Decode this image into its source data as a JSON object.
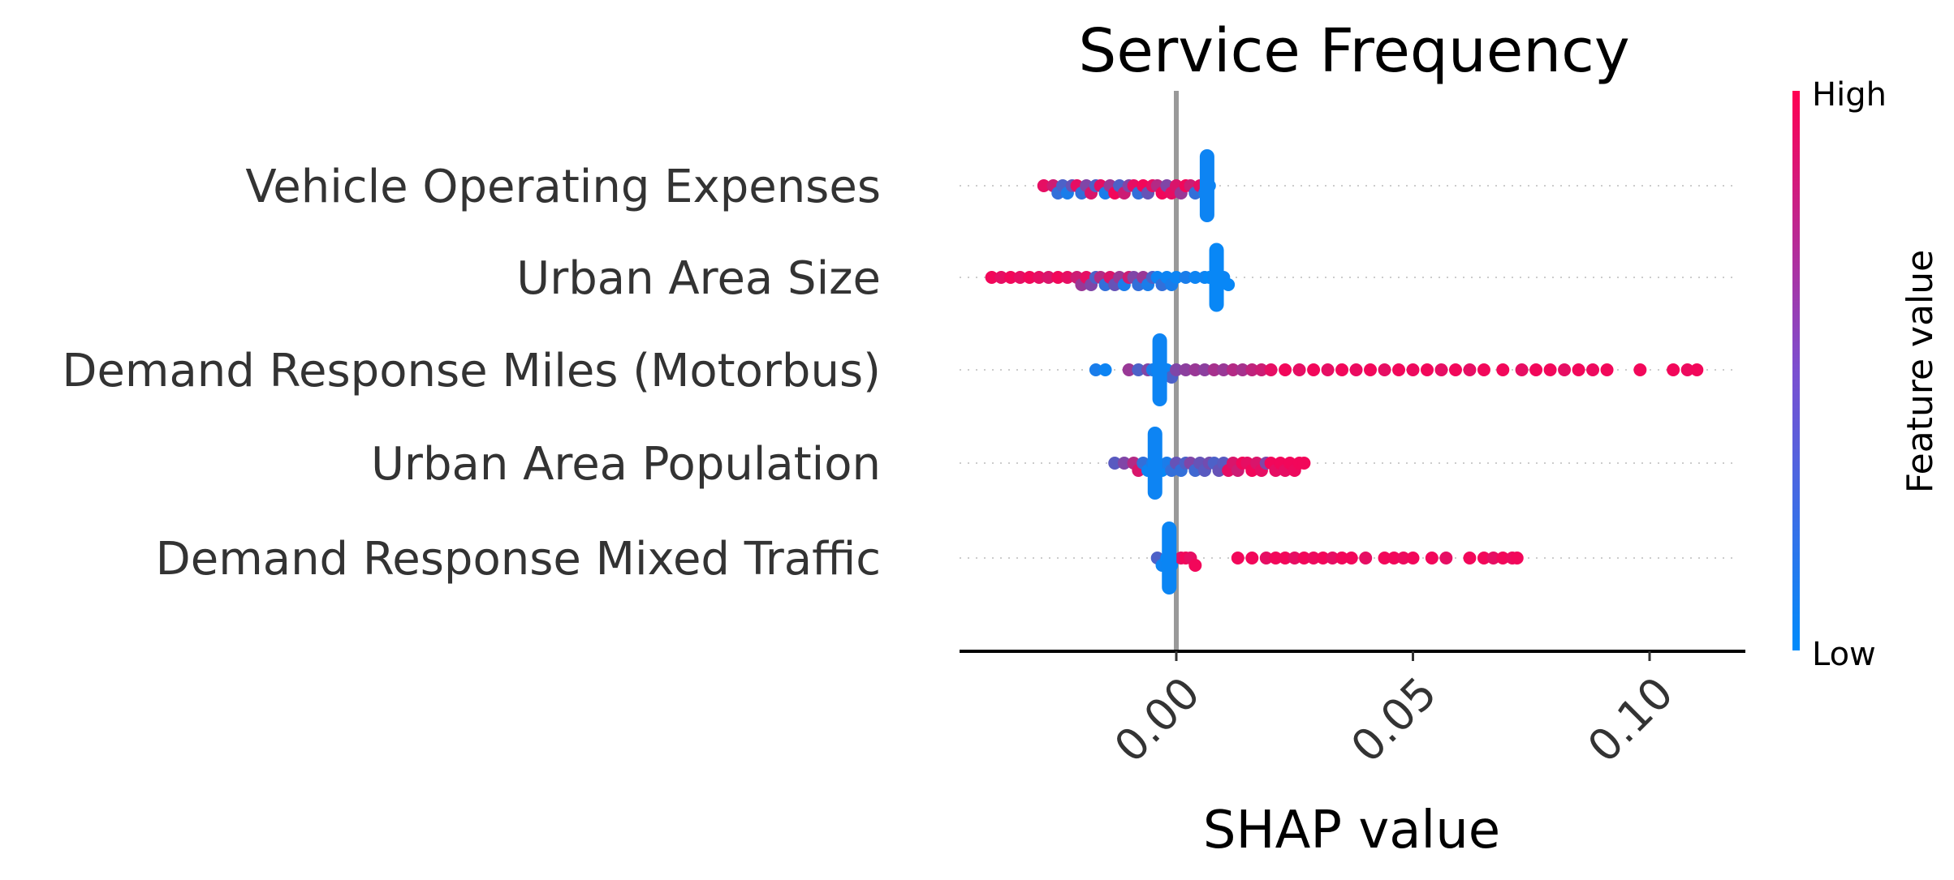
{
  "chart_data": {
    "type": "scatter",
    "subtype": "shap-beeswarm",
    "title": "Service Frequency",
    "xlabel": "SHAP value",
    "xlim": [
      -0.046,
      0.12
    ],
    "xticks": [
      {
        "value": 0.0,
        "label": "0.00"
      },
      {
        "value": 0.05,
        "label": "0.05"
      },
      {
        "value": 0.1,
        "label": "0.10"
      }
    ],
    "zero_line": true,
    "colorbar": {
      "title": "Feature value",
      "high_label": "High",
      "low_label": "Low",
      "low_color": "#008bfb",
      "high_color": "#ff0052"
    },
    "features": [
      {
        "name": "Vehicle Operating Expenses",
        "points": [
          [
            -0.028,
            0.9
          ],
          [
            -0.026,
            0.8
          ],
          [
            -0.025,
            0.2
          ],
          [
            -0.024,
            0.3
          ],
          [
            -0.023,
            0.1
          ],
          [
            -0.022,
            0.4
          ],
          [
            -0.021,
            0.9
          ],
          [
            -0.02,
            0.2
          ],
          [
            -0.019,
            0.5
          ],
          [
            -0.018,
            0.85
          ],
          [
            -0.017,
            0.3
          ],
          [
            -0.016,
            0.9
          ],
          [
            -0.015,
            0.1
          ],
          [
            -0.014,
            0.6
          ],
          [
            -0.013,
            0.95
          ],
          [
            -0.012,
            0.3
          ],
          [
            -0.011,
            0.8
          ],
          [
            -0.01,
            0.5
          ],
          [
            -0.009,
            0.9
          ],
          [
            -0.008,
            0.2
          ],
          [
            -0.007,
            0.95
          ],
          [
            -0.006,
            0.4
          ],
          [
            -0.005,
            0.9
          ],
          [
            -0.004,
            0.7
          ],
          [
            -0.003,
            0.95
          ],
          [
            -0.002,
            0.5
          ],
          [
            -0.001,
            0.9
          ],
          [
            0.0,
            0.85
          ],
          [
            0.001,
            0.6
          ],
          [
            0.002,
            0.95
          ],
          [
            0.003,
            0.8
          ],
          [
            0.004,
            0.2
          ],
          [
            0.005,
            0.9
          ],
          [
            0.006,
            0.1
          ],
          [
            0.007,
            0.05
          ]
        ]
      },
      {
        "name": "Urban Area Size",
        "points": [
          [
            -0.039,
            0.95
          ],
          [
            -0.037,
            0.9
          ],
          [
            -0.035,
            0.95
          ],
          [
            -0.033,
            0.9
          ],
          [
            -0.031,
            0.95
          ],
          [
            -0.029,
            0.9
          ],
          [
            -0.027,
            0.85
          ],
          [
            -0.025,
            0.95
          ],
          [
            -0.023,
            0.9
          ],
          [
            -0.021,
            0.8
          ],
          [
            -0.02,
            0.6
          ],
          [
            -0.019,
            0.9
          ],
          [
            -0.018,
            0.5
          ],
          [
            -0.017,
            0.3
          ],
          [
            -0.016,
            0.7
          ],
          [
            -0.015,
            0.2
          ],
          [
            -0.014,
            0.85
          ],
          [
            -0.013,
            0.4
          ],
          [
            -0.012,
            0.6
          ],
          [
            -0.011,
            0.1
          ],
          [
            -0.01,
            0.8
          ],
          [
            -0.009,
            0.5
          ],
          [
            -0.008,
            0.2
          ],
          [
            -0.007,
            0.6
          ],
          [
            -0.006,
            0.1
          ],
          [
            -0.005,
            0.3
          ],
          [
            -0.004,
            0.05
          ],
          [
            -0.003,
            0.2
          ],
          [
            -0.002,
            0.05
          ],
          [
            -0.001,
            0.1
          ],
          [
            0.0,
            0.05
          ],
          [
            0.002,
            0.1
          ],
          [
            0.004,
            0.05
          ],
          [
            0.006,
            0.05
          ],
          [
            0.007,
            0.02
          ],
          [
            0.008,
            0.05
          ],
          [
            0.009,
            0.02
          ],
          [
            0.01,
            0.05
          ],
          [
            0.011,
            0.03
          ]
        ]
      },
      {
        "name": "Demand Response Miles (Motorbus)",
        "points": [
          [
            -0.017,
            0.1
          ],
          [
            -0.015,
            0.05
          ],
          [
            -0.01,
            0.6
          ],
          [
            -0.008,
            0.3
          ],
          [
            -0.006,
            0.5
          ],
          [
            -0.005,
            0.1
          ],
          [
            -0.004,
            0.05
          ],
          [
            -0.003,
            0.02
          ],
          [
            -0.002,
            0.05
          ],
          [
            -0.001,
            0.3
          ],
          [
            0.0,
            0.5
          ],
          [
            0.002,
            0.55
          ],
          [
            0.004,
            0.6
          ],
          [
            0.006,
            0.55
          ],
          [
            0.008,
            0.65
          ],
          [
            0.01,
            0.6
          ],
          [
            0.012,
            0.7
          ],
          [
            0.014,
            0.65
          ],
          [
            0.016,
            0.75
          ],
          [
            0.018,
            0.8
          ],
          [
            0.02,
            0.9
          ],
          [
            0.023,
            0.95
          ],
          [
            0.026,
            0.9
          ],
          [
            0.029,
            0.95
          ],
          [
            0.032,
            0.9
          ],
          [
            0.035,
            0.95
          ],
          [
            0.038,
            0.92
          ],
          [
            0.041,
            0.95
          ],
          [
            0.044,
            0.9
          ],
          [
            0.047,
            0.95
          ],
          [
            0.05,
            0.93
          ],
          [
            0.053,
            0.95
          ],
          [
            0.056,
            0.9
          ],
          [
            0.059,
            0.95
          ],
          [
            0.062,
            0.9
          ],
          [
            0.065,
            0.95
          ],
          [
            0.069,
            0.95
          ],
          [
            0.073,
            0.9
          ],
          [
            0.076,
            0.95
          ],
          [
            0.079,
            0.95
          ],
          [
            0.082,
            0.9
          ],
          [
            0.085,
            0.95
          ],
          [
            0.088,
            0.93
          ],
          [
            0.091,
            0.95
          ],
          [
            0.098,
            0.95
          ],
          [
            0.105,
            0.95
          ],
          [
            0.108,
            0.93
          ],
          [
            0.11,
            0.95
          ]
        ]
      },
      {
        "name": "Urban Area Population",
        "points": [
          [
            -0.013,
            0.35
          ],
          [
            -0.011,
            0.5
          ],
          [
            -0.009,
            0.7
          ],
          [
            -0.008,
            0.85
          ],
          [
            -0.007,
            0.2
          ],
          [
            -0.006,
            0.05
          ],
          [
            -0.005,
            0.1
          ],
          [
            -0.004,
            0.05
          ],
          [
            -0.003,
            0.03
          ],
          [
            -0.002,
            0.1
          ],
          [
            -0.001,
            0.2
          ],
          [
            0.0,
            0.4
          ],
          [
            0.001,
            0.2
          ],
          [
            0.002,
            0.3
          ],
          [
            0.003,
            0.5
          ],
          [
            0.004,
            0.25
          ],
          [
            0.005,
            0.4
          ],
          [
            0.006,
            0.35
          ],
          [
            0.007,
            0.45
          ],
          [
            0.008,
            0.3
          ],
          [
            0.009,
            0.4
          ],
          [
            0.01,
            0.35
          ],
          [
            0.011,
            0.9
          ],
          [
            0.012,
            0.85
          ],
          [
            0.013,
            0.8
          ],
          [
            0.014,
            0.95
          ],
          [
            0.015,
            0.9
          ],
          [
            0.016,
            0.95
          ],
          [
            0.017,
            0.85
          ],
          [
            0.018,
            0.9
          ],
          [
            0.019,
            0.5
          ],
          [
            0.02,
            0.95
          ],
          [
            0.021,
            0.9
          ],
          [
            0.022,
            0.95
          ],
          [
            0.023,
            0.9
          ],
          [
            0.024,
            0.95
          ],
          [
            0.025,
            0.93
          ],
          [
            0.026,
            0.95
          ],
          [
            0.027,
            0.95
          ]
        ]
      },
      {
        "name": "Demand Response Mixed Traffic",
        "points": [
          [
            -0.004,
            0.3
          ],
          [
            -0.003,
            0.05
          ],
          [
            -0.002,
            0.02
          ],
          [
            -0.001,
            0.05
          ],
          [
            0.001,
            0.9
          ],
          [
            0.002,
            0.95
          ],
          [
            0.003,
            0.9
          ],
          [
            0.004,
            0.95
          ],
          [
            0.013,
            0.95
          ],
          [
            0.016,
            0.95
          ],
          [
            0.019,
            0.9
          ],
          [
            0.021,
            0.95
          ],
          [
            0.023,
            0.95
          ],
          [
            0.025,
            0.9
          ],
          [
            0.027,
            0.95
          ],
          [
            0.029,
            0.93
          ],
          [
            0.031,
            0.95
          ],
          [
            0.033,
            0.9
          ],
          [
            0.035,
            0.95
          ],
          [
            0.037,
            0.95
          ],
          [
            0.04,
            0.9
          ],
          [
            0.044,
            0.95
          ],
          [
            0.046,
            0.95
          ],
          [
            0.048,
            0.93
          ],
          [
            0.05,
            0.95
          ],
          [
            0.054,
            0.95
          ],
          [
            0.057,
            0.9
          ],
          [
            0.062,
            0.95
          ],
          [
            0.065,
            0.95
          ],
          [
            0.067,
            0.9
          ],
          [
            0.069,
            0.95
          ],
          [
            0.071,
            0.93
          ],
          [
            0.072,
            0.95
          ]
        ]
      }
    ]
  }
}
